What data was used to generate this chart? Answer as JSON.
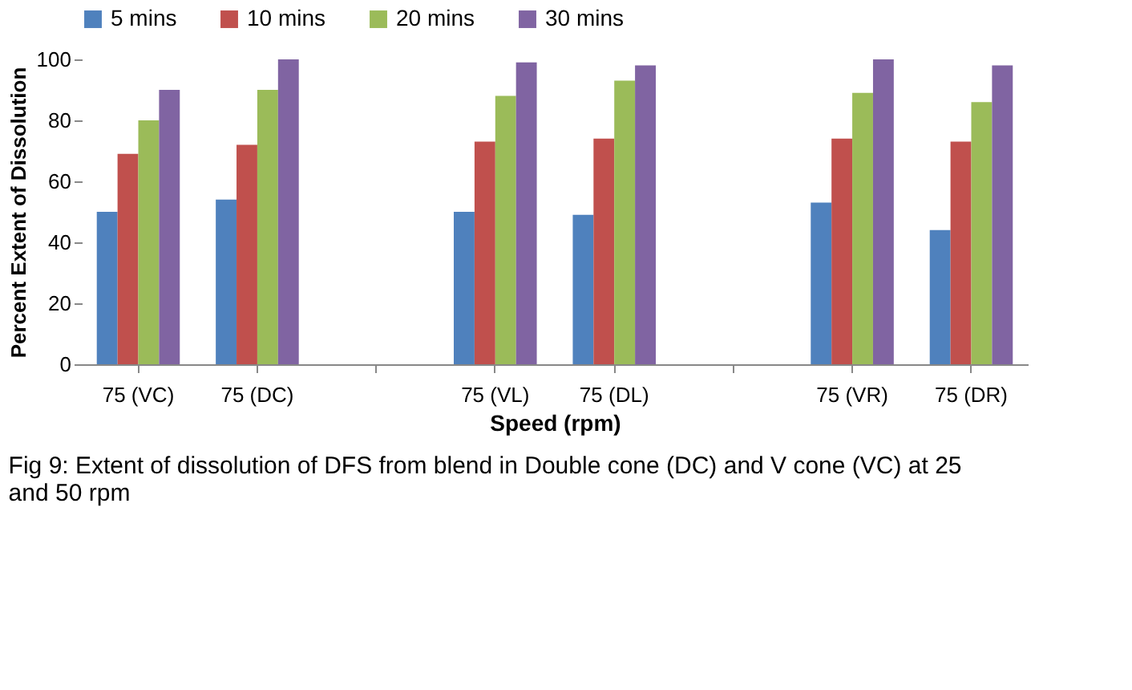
{
  "chart_data": {
    "type": "bar",
    "xlabel": "Speed (rpm)",
    "ylabel": "Percent Extent of Dissolution",
    "categories": [
      "75 (VC)",
      "75 (DC)",
      null,
      "75 (VL)",
      "75 (DL)",
      null,
      "75 (VR)",
      "75 (DR)"
    ],
    "series": [
      {
        "name": "5 mins",
        "color": "#4f81bd",
        "values": [
          50,
          54,
          null,
          50,
          49,
          null,
          53,
          44
        ]
      },
      {
        "name": "10 mins",
        "color": "#c0504d",
        "values": [
          69,
          72,
          null,
          73,
          74,
          null,
          74,
          73
        ]
      },
      {
        "name": "20 mins",
        "color": "#9bbb59",
        "values": [
          80,
          90,
          null,
          88,
          93,
          null,
          89,
          86
        ]
      },
      {
        "name": "30 mins",
        "color": "#8064a2",
        "values": [
          90,
          100,
          null,
          99,
          98,
          null,
          100,
          98
        ]
      }
    ],
    "ylim": [
      0,
      100
    ],
    "yticks": [
      0,
      20,
      40,
      60,
      80,
      100
    ],
    "grid": false,
    "legend": "top",
    "annotations": [
      "Fig 9: Extent of dissolution of DFS from blend in Double cone (DC) and V cone (VC) at 25 and 50 rpm"
    ]
  }
}
